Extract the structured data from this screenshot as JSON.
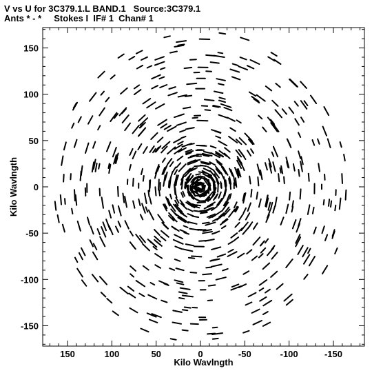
{
  "header": {
    "title_line1": "V vs U for 3C379.1.L BAND.1   Source:3C379.1",
    "title_line2": "Ants * - *     Stokes I  IF# 1  Chan# 1"
  },
  "chart_data": {
    "type": "scatter",
    "xlabel": "Kilo Wavlngth",
    "ylabel": "Kilo Wavlngth",
    "xlim": [
      178,
      -185
    ],
    "ylim": [
      -172,
      172
    ],
    "x_ticks": [
      150,
      100,
      50,
      0,
      -50,
      -100,
      -150
    ],
    "y_ticks": [
      150,
      100,
      50,
      0,
      -50,
      -100,
      -150
    ],
    "x_tick_labels": [
      "150",
      "100",
      "50",
      "0",
      "-50",
      "-100",
      "-150"
    ],
    "y_tick_labels": [
      "150",
      "100",
      "50",
      "0",
      "-50",
      "-100",
      "-150"
    ],
    "grid": false,
    "legend": "none",
    "mark_color": "#000000",
    "pattern": {
      "description_source": "uv-track arc segments symmetric about origin",
      "ring_radii_step": 6,
      "max_radius": 168,
      "arm_angles_deg": [
        0,
        30,
        60,
        90,
        120,
        150,
        180,
        210,
        240,
        270,
        300,
        330
      ]
    }
  }
}
